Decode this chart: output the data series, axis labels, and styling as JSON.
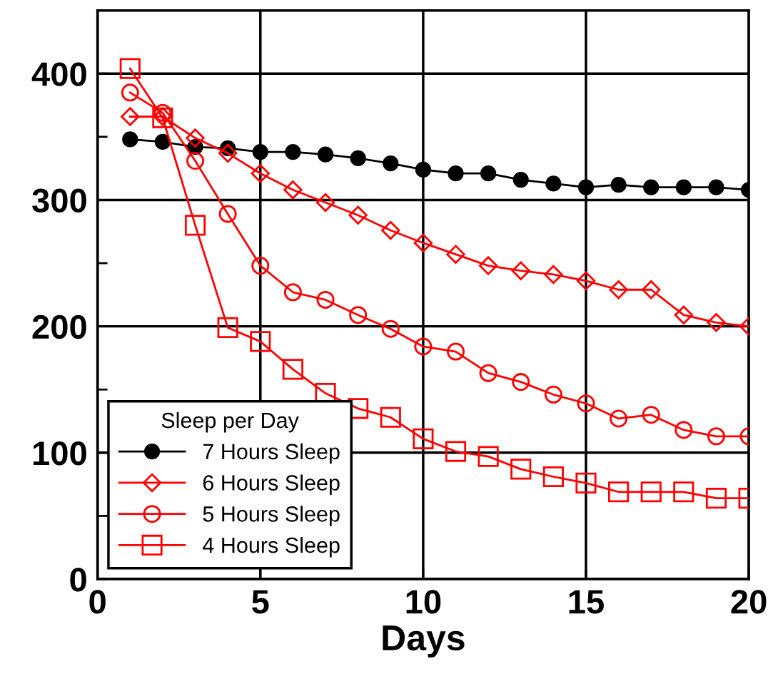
{
  "chart_data": {
    "type": "line",
    "xlabel": "Days",
    "legend_title": "Sleep per Day",
    "legend": "bottom left",
    "grid": true,
    "xlim": [
      0,
      20
    ],
    "xticks": [
      0,
      5,
      10,
      15,
      20
    ],
    "ylim": [
      0,
      450
    ],
    "yticks": [
      0,
      {
        "value": 50,
        "label": null
      },
      100,
      {
        "value": 150,
        "label": null
      },
      200,
      {
        "value": 250,
        "label": null
      },
      300,
      {
        "value": 350,
        "label": null
      },
      400
    ],
    "x": [
      1,
      2,
      3,
      4,
      5,
      6,
      7,
      8,
      9,
      10,
      11,
      12,
      13,
      14,
      15,
      16,
      17,
      18,
      19,
      20
    ],
    "series": [
      {
        "name": "7 Hours Sleep",
        "color": "#000000",
        "marker": "filled circle",
        "values": [
          348,
          346,
          342,
          341,
          338,
          338,
          336,
          333,
          329,
          324,
          321,
          321,
          316,
          313,
          310,
          312,
          310,
          310,
          310,
          308
        ]
      },
      {
        "name": "6 Hours Sleep",
        "color": "#ff0000",
        "marker": "diamond",
        "values": [
          366,
          366,
          349,
          337,
          321,
          308,
          298,
          288,
          276,
          266,
          257,
          248,
          244,
          241,
          236,
          229,
          229,
          209,
          203,
          200
        ]
      },
      {
        "name": "5 Hours Sleep",
        "color": "#ff0000",
        "marker": "circle",
        "values": [
          385,
          369,
          331,
          289,
          248,
          227,
          221,
          209,
          198,
          184,
          180,
          163,
          156,
          146,
          139,
          127,
          130,
          118,
          113,
          113
        ]
      },
      {
        "name": "4 Hours Sleep",
        "color": "#ff0000",
        "marker": "square",
        "values": [
          404,
          365,
          280,
          199,
          188,
          166,
          147,
          135,
          128,
          111,
          101,
          97,
          87,
          81,
          76,
          69,
          69,
          69,
          64,
          64
        ]
      }
    ]
  }
}
